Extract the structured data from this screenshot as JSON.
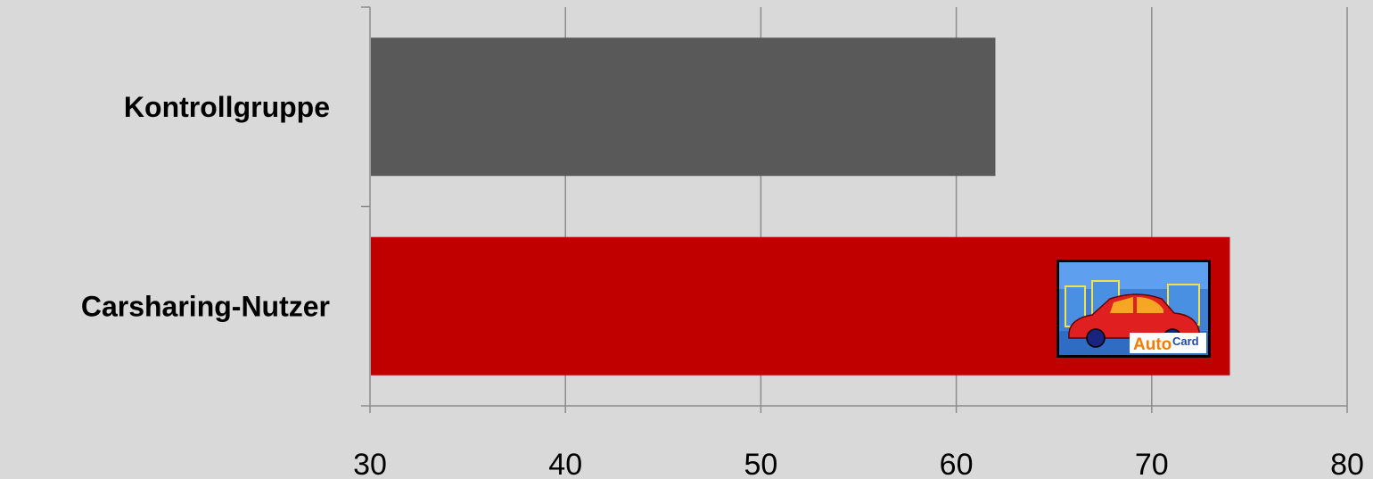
{
  "chart_data": {
    "type": "bar",
    "orientation": "horizontal",
    "categories": [
      "Kontrollgruppe",
      "Carsharing-Nutzer"
    ],
    "values": [
      62,
      74
    ],
    "xlim": [
      30,
      80
    ],
    "xticks": [
      "30",
      "40",
      "50",
      "60",
      "70",
      "80"
    ],
    "grid": true,
    "colors": [
      "#595959",
      "#c00000"
    ]
  },
  "logo": {
    "text_main": "Auto",
    "text_sub": "Card"
  }
}
